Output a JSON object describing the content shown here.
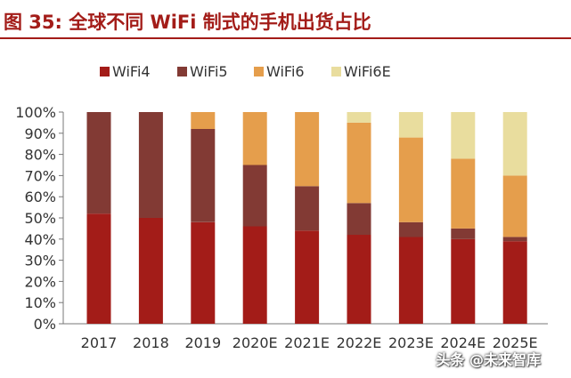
{
  "title": "图 35:  全球不同 WiFi 制式的手机出货占比",
  "watermark": "头条 @未来智库",
  "chart_data": {
    "type": "bar",
    "stacked": true,
    "categories": [
      "2017",
      "2018",
      "2019",
      "2020E",
      "2021E",
      "2022E",
      "2023E",
      "2024E",
      "2025E"
    ],
    "series": [
      {
        "name": "WiFi4",
        "color": "#a31c18",
        "values": [
          52,
          50,
          48,
          46,
          44,
          42,
          41,
          40,
          39
        ]
      },
      {
        "name": "WiFi5",
        "color": "#823a34",
        "values": [
          48,
          50,
          44,
          29,
          21,
          15,
          7,
          5,
          2
        ]
      },
      {
        "name": "WiFi6",
        "color": "#e59e4c",
        "values": [
          0,
          0,
          8,
          25,
          35,
          38,
          40,
          33,
          29
        ]
      },
      {
        "name": "WiFi6E",
        "color": "#e9dd9e",
        "values": [
          0,
          0,
          0,
          0,
          0,
          5,
          12,
          22,
          30
        ]
      }
    ],
    "ylim": [
      0,
      100
    ],
    "yticks": [
      "0%",
      "10%",
      "20%",
      "30%",
      "40%",
      "50%",
      "60%",
      "70%",
      "80%",
      "90%",
      "100%"
    ],
    "ytick_values": [
      0,
      10,
      20,
      30,
      40,
      50,
      60,
      70,
      80,
      90,
      100
    ],
    "legend_position": "top",
    "grid": false
  }
}
